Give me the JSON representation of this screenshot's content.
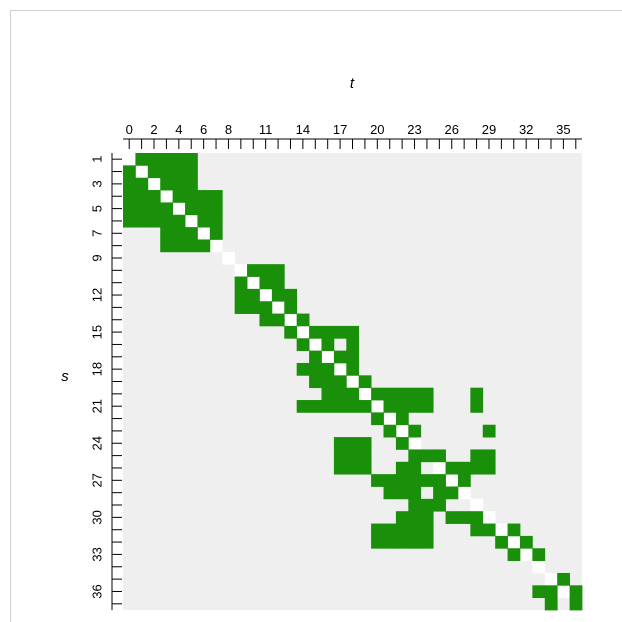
{
  "chart_data": {
    "type": "heatmap",
    "xlabel": "t",
    "ylabel": "s",
    "n": 37,
    "xticks": [
      "0",
      "2",
      "4",
      "6",
      "8",
      "11",
      "14",
      "17",
      "20",
      "23",
      "26",
      "29",
      "32",
      "35"
    ],
    "yticks": [
      "1",
      "3",
      "5",
      "7",
      "9",
      "12",
      "15",
      "18",
      "21",
      "24",
      "27",
      "30",
      "33",
      "36"
    ],
    "colors": {
      "filled": "#1a8f0a",
      "background": "#efefef",
      "diagonal": "#ffffff"
    },
    "grid": false,
    "filled_cells": [
      [
        0,
        [
          1,
          2,
          3,
          4,
          5
        ]
      ],
      [
        1,
        [
          0,
          2,
          3,
          4,
          5
        ]
      ],
      [
        2,
        [
          0,
          1,
          3,
          4,
          5
        ]
      ],
      [
        3,
        [
          0,
          1,
          2,
          4,
          5,
          6,
          7
        ]
      ],
      [
        4,
        [
          0,
          1,
          2,
          3,
          5,
          6,
          7
        ]
      ],
      [
        5,
        [
          0,
          1,
          2,
          3,
          4,
          6,
          7
        ]
      ],
      [
        6,
        [
          3,
          4,
          5,
          7
        ]
      ],
      [
        7,
        [
          3,
          4,
          5,
          6
        ]
      ],
      [
        9,
        [
          10,
          11,
          12
        ]
      ],
      [
        10,
        [
          9,
          11,
          12
        ]
      ],
      [
        11,
        [
          9,
          10,
          12,
          13
        ]
      ],
      [
        12,
        [
          9,
          10,
          11,
          13
        ]
      ],
      [
        13,
        [
          11,
          12,
          14
        ]
      ],
      [
        14,
        [
          13,
          15,
          16,
          17,
          18
        ]
      ],
      [
        15,
        [
          14,
          16,
          18
        ]
      ],
      [
        16,
        [
          15,
          17,
          18
        ]
      ],
      [
        17,
        [
          14,
          15,
          16,
          18
        ]
      ],
      [
        18,
        [
          15,
          16,
          17,
          19
        ]
      ],
      [
        19,
        [
          16,
          17,
          18,
          20,
          21,
          22,
          23,
          24,
          28
        ]
      ],
      [
        20,
        [
          14,
          15,
          16,
          17,
          18,
          19,
          21,
          22,
          23,
          24,
          28
        ]
      ],
      [
        21,
        [
          20,
          22
        ]
      ],
      [
        22,
        [
          21,
          23,
          29
        ]
      ],
      [
        23,
        [
          17,
          18,
          19,
          22
        ]
      ],
      [
        24,
        [
          17,
          18,
          19,
          23,
          24,
          25,
          28,
          29
        ]
      ],
      [
        25,
        [
          17,
          18,
          19,
          22,
          23,
          26,
          27,
          28,
          29
        ]
      ],
      [
        26,
        [
          20,
          21,
          22,
          23,
          24,
          25,
          27
        ]
      ],
      [
        27,
        [
          21,
          22,
          23,
          25,
          26
        ]
      ],
      [
        28,
        [
          23,
          24,
          25
        ]
      ],
      [
        29,
        [
          22,
          23,
          24,
          26,
          27,
          28
        ]
      ],
      [
        30,
        [
          20,
          21,
          22,
          23,
          24,
          28,
          29,
          31
        ]
      ],
      [
        31,
        [
          20,
          21,
          22,
          23,
          24,
          30,
          32
        ]
      ],
      [
        32,
        [
          31,
          33
        ]
      ],
      [
        34,
        [
          35,
          37
        ]
      ],
      [
        35,
        [
          33,
          34,
          36
        ]
      ],
      [
        36,
        [
          34,
          36
        ]
      ],
      [
        37,
        [
          33,
          34,
          35,
          36
        ]
      ],
      [
        38,
        [
          33,
          34,
          35,
          36,
          37
        ]
      ]
    ]
  }
}
